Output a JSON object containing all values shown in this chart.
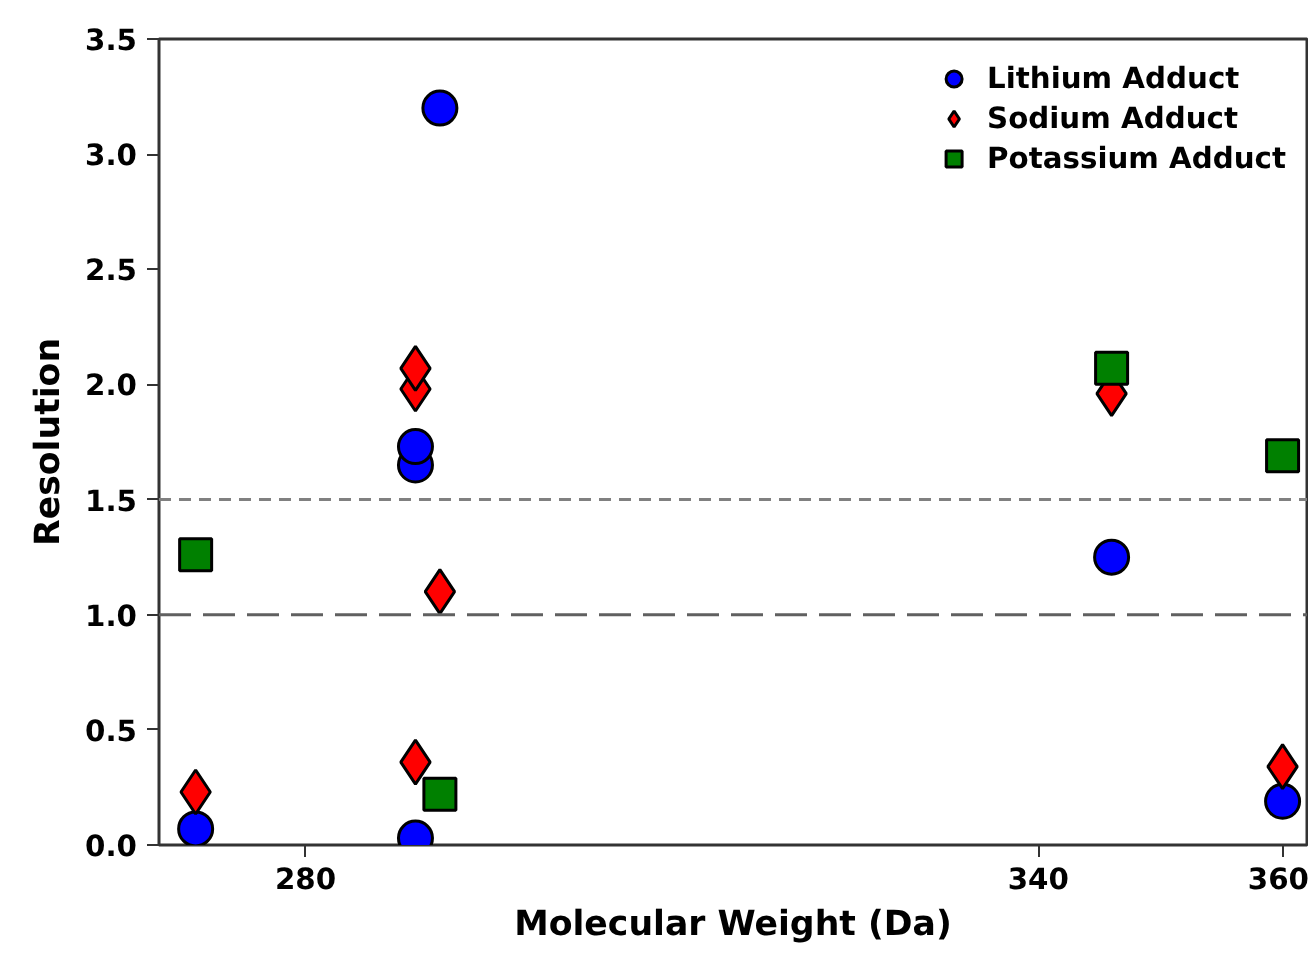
{
  "chart_data": {
    "type": "scatter",
    "ylabel": "Resolution",
    "xlabel": "Molecular Weight (Da)",
    "xlim": [
      268,
      362
    ],
    "xticks": [
      280,
      340,
      360
    ],
    "ylim": [
      0,
      3.5
    ],
    "yticks": [
      {
        "value": 0,
        "label": "0.0"
      },
      0.5,
      {
        "value": 1,
        "label": "1.0"
      },
      1.5,
      {
        "value": 2,
        "label": "2.0"
      },
      2.5,
      {
        "value": 3,
        "label": "3.0"
      },
      3.5
    ],
    "grid": false,
    "legend": "top right",
    "series": [
      {
        "name": "Lithium Adduct",
        "color": "#0000ff",
        "marker": "circle",
        "x": [
          271,
          289,
          289,
          289,
          291,
          346,
          360
        ],
        "values": [
          0.07,
          0.03,
          1.65,
          1.73,
          3.2,
          1.25,
          0.19
        ]
      },
      {
        "name": "Sodium Adduct",
        "color": "#ff0000",
        "marker": "diamond",
        "x": [
          271,
          289,
          289,
          289,
          291,
          346,
          360
        ],
        "values": [
          0.23,
          0.36,
          1.98,
          2.07,
          1.1,
          1.96,
          0.34
        ]
      },
      {
        "name": "Potassium Adduct",
        "color": "#008000",
        "marker": "square",
        "x": [
          271,
          291,
          346,
          360
        ],
        "values": [
          1.26,
          0.22,
          2.07,
          1.69
        ]
      }
    ],
    "ref_lines": [
      {
        "axis": "y",
        "value": 1.5,
        "color": "#808080",
        "line_style": "dashed"
      },
      {
        "axis": "y",
        "value": 1.0,
        "color": "#606060",
        "line_style": "longdash"
      }
    ]
  }
}
